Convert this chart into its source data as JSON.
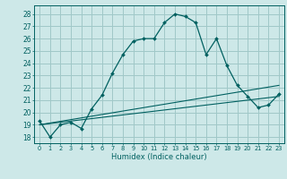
{
  "xlabel": "Humidex (Indice chaleur)",
  "bg_color": "#cde8e8",
  "grid_color": "#a0c8c8",
  "line_color": "#006060",
  "xlim": [
    -0.5,
    23.5
  ],
  "ylim": [
    17.5,
    28.7
  ],
  "xticks": [
    0,
    1,
    2,
    3,
    4,
    5,
    6,
    7,
    8,
    9,
    10,
    11,
    12,
    13,
    14,
    15,
    16,
    17,
    18,
    19,
    20,
    21,
    22,
    23
  ],
  "yticks": [
    18,
    19,
    20,
    21,
    22,
    23,
    24,
    25,
    26,
    27,
    28
  ],
  "main_x": [
    0,
    1,
    2,
    3,
    4,
    5,
    6,
    7,
    8,
    9,
    10,
    11,
    12,
    13,
    14,
    15,
    16,
    17,
    18,
    19,
    20,
    21,
    22,
    23
  ],
  "main_y": [
    19.3,
    18.0,
    19.0,
    19.2,
    18.7,
    20.3,
    21.4,
    23.2,
    24.7,
    25.8,
    26.0,
    26.0,
    27.3,
    28.0,
    27.8,
    27.3,
    24.7,
    26.0,
    23.8,
    22.2,
    21.3,
    20.4,
    20.6,
    21.5
  ],
  "line2_x": [
    0,
    23
  ],
  "line2_y": [
    19.0,
    22.2
  ],
  "line3_x": [
    0,
    23
  ],
  "line3_y": [
    19.0,
    21.3
  ]
}
